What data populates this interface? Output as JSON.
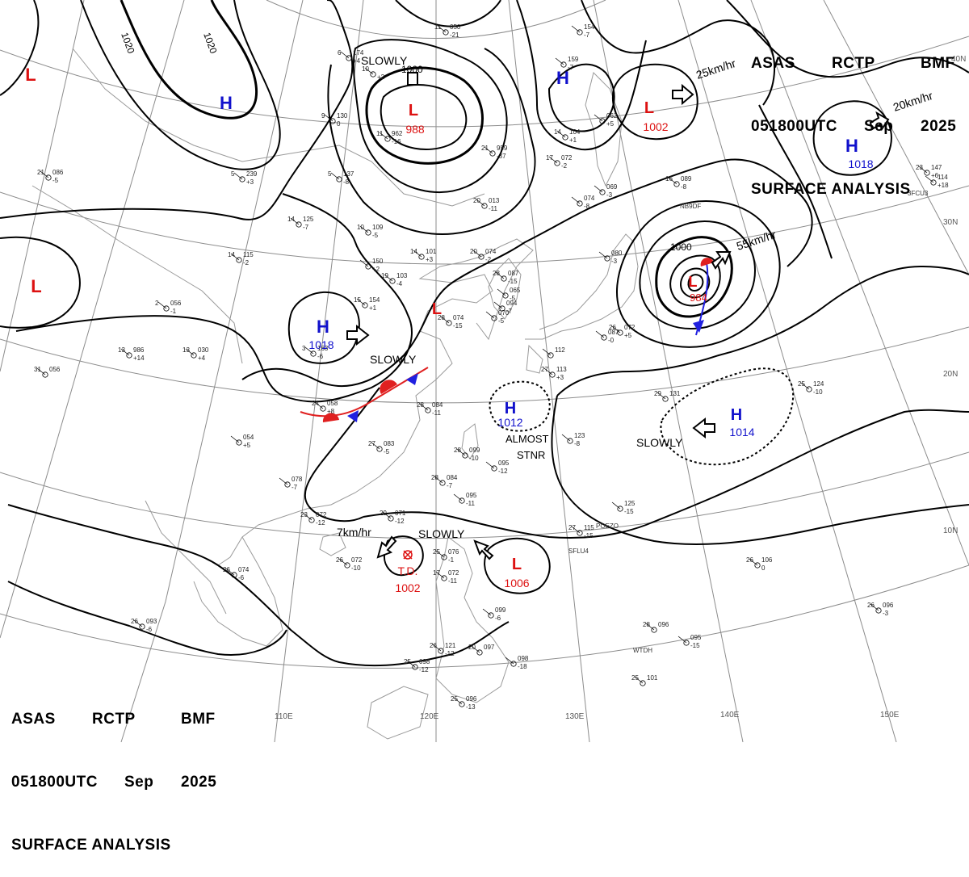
{
  "header_top": {
    "line1": [
      "ASAS",
      "RCTP",
      "BMF"
    ],
    "line2": [
      "051800UTC",
      "Sep",
      "2025"
    ],
    "line3": "SURFACE ANALYSIS"
  },
  "header_bottom": {
    "line1": [
      "ASAS",
      "RCTP",
      "BMF"
    ],
    "line2": [
      "051800UTC",
      "Sep",
      "2025"
    ],
    "line3": "SURFACE ANALYSIS"
  },
  "lat_labels": [
    "40N",
    "30N",
    "20N",
    "10N"
  ],
  "lon_labels": [
    "110E",
    "120E",
    "130E",
    "140E",
    "150E"
  ],
  "isobar_labels": [
    "1020",
    "1020",
    "1000",
    "1000"
  ],
  "pressure_centers": [
    {
      "id": "L-nw",
      "type": "L",
      "value": ""
    },
    {
      "id": "H-mongolia",
      "type": "H",
      "value": ""
    },
    {
      "id": "L-manchuria",
      "type": "L",
      "value": "988"
    },
    {
      "id": "H-okhotsk",
      "type": "H",
      "value": ""
    },
    {
      "id": "L-pacific-north",
      "type": "L",
      "value": "1002"
    },
    {
      "id": "H-pacific-ne",
      "type": "H",
      "value": "1018"
    },
    {
      "id": "L-west",
      "type": "L",
      "value": ""
    },
    {
      "id": "H-china",
      "type": "H",
      "value": "1018"
    },
    {
      "id": "L-bohai",
      "type": "L",
      "value": ""
    },
    {
      "id": "L-japan",
      "type": "L",
      "value": "984"
    },
    {
      "id": "H-east-china-sea",
      "type": "H",
      "value": "1012"
    },
    {
      "id": "H-pacific",
      "type": "H",
      "value": "1014"
    },
    {
      "id": "TD-scs",
      "type": "T.D.",
      "value": "1002"
    },
    {
      "id": "L-philippines",
      "type": "L",
      "value": "1006"
    }
  ],
  "motion_labels": [
    {
      "id": "slowly-manchuria",
      "text": "SLOWLY"
    },
    {
      "id": "speed-1002",
      "text": "25km/hr"
    },
    {
      "id": "speed-1018ne",
      "text": "20km/hr"
    },
    {
      "id": "speed-984",
      "text": "55km/hr"
    },
    {
      "id": "slowly-front",
      "text": "SLOWLY"
    },
    {
      "id": "almost-stnr",
      "text": "ALMOST\nSTNR"
    },
    {
      "id": "slowly-1014",
      "text": "SLOWLY"
    },
    {
      "id": "speed-td",
      "text": "7km/hr"
    },
    {
      "id": "slowly-1006",
      "text": "SLOWLY"
    }
  ],
  "station_plots": [
    {
      "t": "11",
      "p": "050",
      "d": "-21"
    },
    {
      "t": "6",
      "p": "174",
      "d": "+4"
    },
    {
      "t": "10",
      "p": "",
      "d": "+2"
    },
    {
      "t": "9",
      "p": "130",
      "d": "0"
    },
    {
      "t": "11",
      "p": "962",
      "d": "-16"
    },
    {
      "t": "21",
      "p": "959",
      "d": "-37"
    },
    {
      "t": "",
      "p": "154",
      "d": "-7"
    },
    {
      "t": "",
      "p": "159",
      "d": "-7"
    },
    {
      "t": "14",
      "p": "104",
      "d": "+1"
    },
    {
      "t": "",
      "p": "062",
      "d": "+5"
    },
    {
      "t": "17",
      "p": "072",
      "d": "-2"
    },
    {
      "t": "",
      "p": "074",
      "d": "-8"
    },
    {
      "t": "20",
      "p": "013",
      "d": "-11"
    },
    {
      "t": "5",
      "p": "137",
      "d": "-8"
    },
    {
      "t": "5",
      "p": "239",
      "d": "+3"
    },
    {
      "t": "21",
      "p": "086",
      "d": "-5"
    },
    {
      "t": "14",
      "p": "125",
      "d": "-7"
    },
    {
      "t": "10",
      "p": "109",
      "d": "-5"
    },
    {
      "t": "14",
      "p": "115",
      "d": "-2"
    },
    {
      "t": "14",
      "p": "101",
      "d": "+3"
    },
    {
      "t": "20",
      "p": "074",
      "d": "-2"
    },
    {
      "t": "",
      "p": "150",
      "d": "+2"
    },
    {
      "t": "19",
      "p": "103",
      "d": "-4"
    },
    {
      "t": "15",
      "p": "154",
      "d": "+1"
    },
    {
      "t": "2",
      "p": "056",
      "d": "-1"
    },
    {
      "t": "13",
      "p": "030",
      "d": "+4"
    },
    {
      "t": "3",
      "p": "163",
      "d": "-6"
    },
    {
      "t": "13",
      "p": "986",
      "d": "+14"
    },
    {
      "t": "31",
      "p": "056",
      "d": ""
    },
    {
      "t": "24",
      "p": "058",
      "d": "+8"
    },
    {
      "t": "",
      "p": "054",
      "d": "+5"
    },
    {
      "t": "28",
      "p": "084",
      "d": "-11"
    },
    {
      "t": "28",
      "p": "074",
      "d": "-15"
    },
    {
      "t": "28",
      "p": "087",
      "d": "-15"
    },
    {
      "t": "",
      "p": "094",
      "d": "-7"
    },
    {
      "t": "27",
      "p": "083",
      "d": "-5"
    },
    {
      "t": "28",
      "p": "099",
      "d": "-10"
    },
    {
      "t": "",
      "p": "095",
      "d": "-12"
    },
    {
      "t": "28",
      "p": "084",
      "d": "-7"
    },
    {
      "t": "",
      "p": "095",
      "d": "-11"
    },
    {
      "t": "",
      "p": "078",
      "d": "-7"
    },
    {
      "t": "23",
      "p": "072",
      "d": "-12"
    },
    {
      "t": "29",
      "p": "071",
      "d": "-12"
    },
    {
      "t": "26",
      "p": "074",
      "d": "-6"
    },
    {
      "t": "26",
      "p": "072",
      "d": "-10"
    },
    {
      "t": "26",
      "p": "093",
      "d": "-6"
    },
    {
      "t": "25",
      "p": "076",
      "d": "-1"
    },
    {
      "t": "17",
      "p": "072",
      "d": "-11"
    },
    {
      "t": "26",
      "p": "121",
      "d": "-12"
    },
    {
      "t": "20",
      "p": "097",
      "d": ""
    },
    {
      "t": "25",
      "p": "098",
      "d": "-12"
    },
    {
      "t": "",
      "p": "098",
      "d": "-18"
    },
    {
      "t": "25",
      "p": "096",
      "d": "-13"
    },
    {
      "t": "",
      "p": "099",
      "d": "-6"
    },
    {
      "t": "26",
      "p": "072",
      "d": "+5"
    },
    {
      "t": "",
      "p": "080",
      "d": "-3"
    },
    {
      "t": "16",
      "p": "089",
      "d": "-8"
    },
    {
      "t": "",
      "p": "069",
      "d": "-3"
    },
    {
      "t": "",
      "p": "087",
      "d": "-0"
    },
    {
      "t": "23",
      "p": "147",
      "d": "+6"
    },
    {
      "t": "",
      "p": "114",
      "d": "+18"
    },
    {
      "t": "29",
      "p": "131",
      "d": ""
    },
    {
      "t": "25",
      "p": "124",
      "d": "-10"
    },
    {
      "t": "",
      "p": "123",
      "d": "-8"
    },
    {
      "t": "",
      "p": "125",
      "d": "-15"
    },
    {
      "t": "27",
      "p": "115",
      "d": "-15"
    },
    {
      "t": "26",
      "p": "106",
      "d": "0"
    },
    {
      "t": "26",
      "p": "096",
      "d": "-3"
    },
    {
      "t": "28",
      "p": "096",
      "d": ""
    },
    {
      "t": "",
      "p": "095",
      "d": "-15"
    },
    {
      "t": "25",
      "p": "101",
      "d": ""
    },
    {
      "t": "27",
      "p": "113",
      "d": "+3"
    },
    {
      "t": "",
      "p": "112",
      "d": ""
    },
    {
      "t": "",
      "p": "065",
      "d": "-5"
    },
    {
      "t": "",
      "p": "070",
      "d": "-5"
    }
  ],
  "ship_ids": [
    "NB9DF",
    "3FCU3",
    "POEZO",
    "SFLU4",
    "WTDH"
  ],
  "colors": {
    "low": "#dd1111",
    "high": "#1111cc",
    "isobar": "#000000",
    "grid": "#8c8c8c",
    "coast": "#9a9a9a",
    "warm_front": "#e02020",
    "cold_front": "#2020e0"
  }
}
